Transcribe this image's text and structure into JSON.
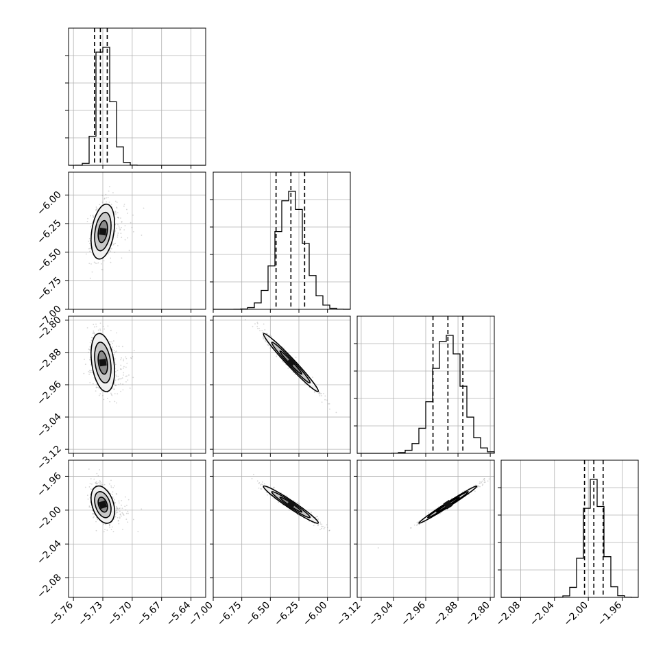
{
  "chart_data": {
    "type": "corner",
    "title": "",
    "parameters": [
      {
        "label": "",
        "range": [
          -5.765,
          -5.625
        ],
        "ticks": [
          -5.76,
          -5.73,
          -5.7,
          -5.67,
          -5.64
        ],
        "tick_labels": [
          "−5.76",
          "−5.73",
          "−5.70",
          "−5.67",
          "−5.64"
        ],
        "quantiles": [
          -5.7385,
          -5.7325,
          -5.7255
        ],
        "mean": -5.73,
        "sd": 0.006,
        "hist_peak": -5.7325
      },
      {
        "label": "",
        "range": [
          -7.0,
          -5.8
        ],
        "ticks": [
          -7.0,
          -6.75,
          -6.5,
          -6.25,
          -6.0
        ],
        "tick_labels": [
          "−7.00",
          "−6.75",
          "−6.50",
          "−6.25",
          "−6.00"
        ],
        "quantiles": [
          -6.45,
          -6.32,
          -6.2
        ],
        "mean": -6.32,
        "sd": 0.12,
        "hist_peak": -6.32
      },
      {
        "label": "",
        "range": [
          -3.13,
          -2.79
        ],
        "ticks": [
          -3.12,
          -3.04,
          -2.96,
          -2.88,
          -2.8
        ],
        "tick_labels": [
          "−3.12",
          "−3.04",
          "−2.96",
          "−2.88",
          "−2.80"
        ],
        "quantiles": [
          -2.942,
          -2.905,
          -2.868
        ],
        "mean": -2.905,
        "sd": 0.036,
        "hist_peak": -2.905
      },
      {
        "label": "",
        "range": [
          -2.103,
          -1.941
        ],
        "ticks": [
          -2.08,
          -2.04,
          -2.0,
          -1.96
        ],
        "tick_labels": [
          "−2.08",
          "−2.04",
          "−2.00",
          "−1.96"
        ],
        "quantiles": [
          -2.0045,
          -1.9935,
          -1.9825
        ],
        "mean": -1.9935,
        "sd": 0.011,
        "hist_peak": -1.9935
      }
    ],
    "correlations": [
      [
        1.0,
        0.3,
        -0.3,
        -0.35
      ],
      [
        0.3,
        1.0,
        -0.98,
        -0.97
      ],
      [
        -0.3,
        -0.98,
        1.0,
        0.99
      ],
      [
        -0.35,
        -0.97,
        0.99,
        1.0
      ]
    ],
    "grid": true,
    "quantile_lines": "dashed",
    "contour_levels": 3,
    "colors": {
      "hist": "#000000",
      "points": "#888888",
      "grid": "#b0b0b0",
      "background": "#ffffff"
    }
  }
}
